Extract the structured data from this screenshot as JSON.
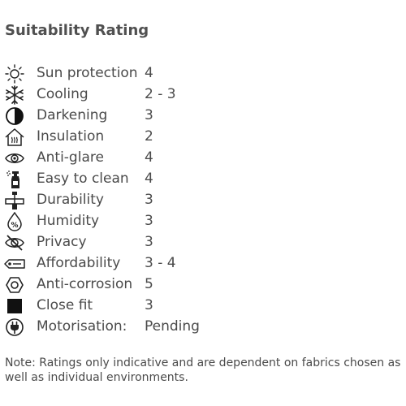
{
  "title": "Suitability Rating",
  "ratings": [
    {
      "icon": "sun-icon",
      "label": "Sun protection",
      "value": "4"
    },
    {
      "icon": "snowflake-icon",
      "label": "Cooling",
      "value": "2 - 3"
    },
    {
      "icon": "half-circle-icon",
      "label": "Darkening",
      "value": "3"
    },
    {
      "icon": "house-heat-icon",
      "label": "Insulation",
      "value": "2"
    },
    {
      "icon": "eye-icon",
      "label": "Anti-glare",
      "value": "4"
    },
    {
      "icon": "spray-bottle-icon",
      "label": "Easy to clean",
      "value": "4"
    },
    {
      "icon": "weight-icon",
      "label": "Durability",
      "value": "3"
    },
    {
      "icon": "humidity-drop-icon",
      "label": "Humidity",
      "value": "3"
    },
    {
      "icon": "eye-slash-icon",
      "label": "Privacy",
      "value": "3"
    },
    {
      "icon": "price-tag-icon",
      "label": "Affordability",
      "value": "3 - 4"
    },
    {
      "icon": "hexagon-nut-icon",
      "label": "Anti-corrosion",
      "value": "5"
    },
    {
      "icon": "filled-square-icon",
      "label": "Close fit",
      "value": "3"
    },
    {
      "icon": "power-plug-icon",
      "label": "Motorisation:",
      "value": "Pending"
    }
  ],
  "note": "Note: Ratings only indicative and are dependent on fabrics chosen as well as individual environments."
}
